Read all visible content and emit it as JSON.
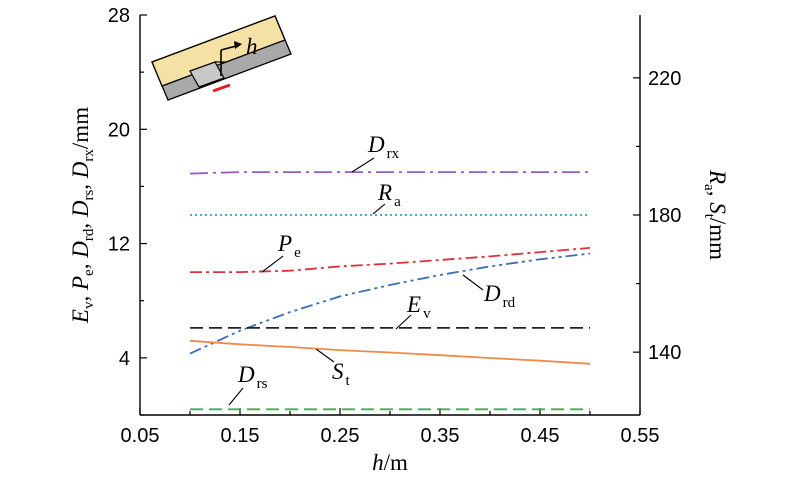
{
  "chart_data": {
    "type": "line",
    "xlabel": {
      "main": "h",
      "unit": "/m"
    },
    "ylabel_left": {
      "parts": [
        [
          "E",
          "v",
          ", "
        ],
        [
          "P",
          "e",
          ", "
        ],
        [
          "D",
          "rd",
          ", "
        ],
        [
          "D",
          "rs",
          ", "
        ],
        [
          "D",
          "rx",
          "/mm"
        ]
      ]
    },
    "ylabel_right": {
      "parts": [
        [
          "R",
          "a",
          ", "
        ],
        [
          "S",
          "t",
          "/mm"
        ]
      ]
    },
    "xlim": [
      0.05,
      0.55
    ],
    "ylim_left": [
      0,
      28
    ],
    "ylim_right": [
      121.67,
      238.33
    ],
    "x_ticks": [
      0.05,
      0.15,
      0.25,
      0.35,
      0.45,
      0.55
    ],
    "x_tick_labels": [
      "0.05",
      "0.15",
      "0.25",
      "0.35",
      "0.45",
      "0.55"
    ],
    "y_left_ticks": [
      4,
      12,
      20,
      28
    ],
    "y_left_tick_labels": [
      "4",
      "12",
      "20",
      "28"
    ],
    "y_right_ticks": [
      140,
      180,
      220
    ],
    "y_right_tick_labels": [
      "140",
      "180",
      "220"
    ],
    "grid": false,
    "series": [
      {
        "name": [
          "D",
          "rx"
        ],
        "axis": "left",
        "color": "#9b59c6",
        "dash": "long-dash-dot",
        "x": [
          0.1,
          0.15,
          0.2,
          0.25,
          0.3,
          0.35,
          0.4,
          0.45,
          0.5
        ],
        "y": [
          16.9,
          17.0,
          17.0,
          17.0,
          17.0,
          17.0,
          17.0,
          17.0,
          17.0
        ]
      },
      {
        "name": [
          "R",
          "a"
        ],
        "axis": "right",
        "color": "#2a9fd6",
        "dash": "dotted",
        "x": [
          0.1,
          0.2,
          0.3,
          0.4,
          0.5
        ],
        "y": [
          180,
          180,
          180,
          180,
          180
        ]
      },
      {
        "name": [
          "P",
          "e"
        ],
        "axis": "left",
        "color": "#e0303a",
        "dash": "dash-dot",
        "x": [
          0.1,
          0.15,
          0.2,
          0.25,
          0.3,
          0.35,
          0.4,
          0.45,
          0.5
        ],
        "y": [
          10.0,
          10.0,
          10.1,
          10.4,
          10.6,
          10.85,
          11.1,
          11.4,
          11.7
        ]
      },
      {
        "name": [
          "D",
          "rd"
        ],
        "axis": "left",
        "color": "#3a6fb5",
        "dash": "dash-dot-dot",
        "x": [
          0.1,
          0.15,
          0.2,
          0.25,
          0.3,
          0.35,
          0.4,
          0.45,
          0.5
        ],
        "y": [
          4.3,
          5.9,
          7.2,
          8.3,
          9.1,
          9.8,
          10.4,
          10.9,
          11.3
        ]
      },
      {
        "name": [
          "E",
          "v"
        ],
        "axis": "left",
        "color": "#222222",
        "dash": "dashed",
        "x": [
          0.1,
          0.2,
          0.3,
          0.4,
          0.5
        ],
        "y": [
          6.1,
          6.1,
          6.1,
          6.1,
          6.1
        ]
      },
      {
        "name": [
          "S",
          "t"
        ],
        "axis": "right",
        "color": "#f08a4b",
        "dash": "solid",
        "x": [
          0.1,
          0.15,
          0.2,
          0.25,
          0.3,
          0.35,
          0.4,
          0.45,
          0.5
        ],
        "y": [
          143.3,
          142.3,
          141.5,
          140.6,
          139.9,
          139.1,
          138.3,
          137.5,
          136.6
        ]
      },
      {
        "name": [
          "D",
          "rs"
        ],
        "axis": "left",
        "color": "#3bb04a",
        "dash": "dashed",
        "x": [
          0.1,
          0.2,
          0.3,
          0.4,
          0.5
        ],
        "y": [
          0.4,
          0.4,
          0.4,
          0.4,
          0.4
        ]
      }
    ]
  },
  "inset": {
    "label": "h",
    "colors": {
      "block": "#f5e1a4",
      "base": "#a9a9a9",
      "accent": "#e02020",
      "step": "#c8c8c8"
    }
  }
}
